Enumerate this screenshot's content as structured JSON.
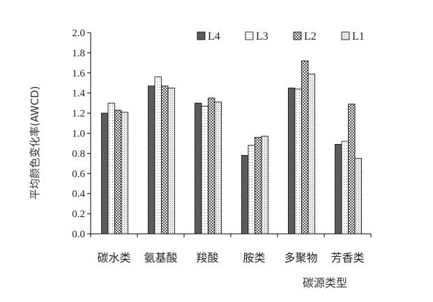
{
  "chart_data": {
    "type": "bar",
    "title": "",
    "xlabel": "碳源类型",
    "ylabel": "平均颜色变化率(AWCD)",
    "categories": [
      "碳水类",
      "氨基酸",
      "羧酸",
      "胺类",
      "多聚物",
      "芳香类"
    ],
    "ylim": [
      0,
      2.0
    ],
    "yticks": [
      "0.0",
      "0.2",
      "0.4",
      "0.6",
      "0.8",
      "1.0",
      "1.2",
      "1.4",
      "1.6",
      "1.8",
      "2.0"
    ],
    "grid": false,
    "legend_position": "top-right",
    "series": [
      {
        "name": "L4",
        "values": [
          1.2,
          1.47,
          1.3,
          0.78,
          1.45,
          0.89
        ],
        "color": "#555555",
        "pattern": "dense-dots"
      },
      {
        "name": "L3",
        "values": [
          1.3,
          1.56,
          1.27,
          0.88,
          1.44,
          0.92
        ],
        "color": "#ffffff",
        "pattern": "sparse-dots"
      },
      {
        "name": "L2",
        "values": [
          1.23,
          1.47,
          1.35,
          0.96,
          1.72,
          1.29
        ],
        "color": "#bbbbbb",
        "pattern": "checker"
      },
      {
        "name": "L1",
        "values": [
          1.21,
          1.45,
          1.31,
          0.97,
          1.59,
          0.75
        ],
        "color": "#dddddd",
        "pattern": "fine-dots"
      }
    ]
  }
}
